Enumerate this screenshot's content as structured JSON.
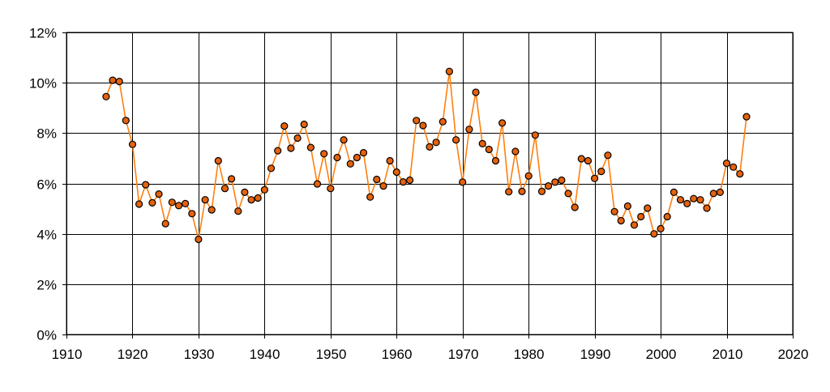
{
  "chart_data": {
    "type": "line",
    "title": "",
    "xlabel": "",
    "ylabel": "",
    "xlim": [
      1910,
      2020
    ],
    "ylim": [
      0,
      0.12
    ],
    "x_ticks": [
      1910,
      1920,
      1930,
      1940,
      1950,
      1960,
      1970,
      1980,
      1990,
      2000,
      2010,
      2020
    ],
    "x_tick_labels": [
      "1910",
      "1920",
      "1930",
      "1940",
      "1950",
      "1960",
      "1970",
      "1980",
      "1990",
      "2000",
      "2010",
      "2020"
    ],
    "y_ticks": [
      0,
      0.02,
      0.04,
      0.06,
      0.08,
      0.1,
      0.12
    ],
    "y_tick_labels": [
      "0%",
      "2%",
      "4%",
      "6%",
      "8%",
      "10%",
      "12%"
    ],
    "grid": true,
    "legend": "none",
    "colors": {
      "line": "#ff7f0e",
      "marker_fill": "#e5620e",
      "marker_edge": "#000000"
    },
    "series": [
      {
        "x": [
          1916,
          1917,
          1918,
          1919,
          1920,
          1921,
          1922,
          1923,
          1924,
          1925,
          1926,
          1927,
          1928,
          1929,
          1930,
          1931,
          1932,
          1933,
          1934,
          1935,
          1936,
          1937,
          1938,
          1939,
          1940,
          1941,
          1942,
          1943,
          1944,
          1945,
          1946,
          1947,
          1948,
          1949,
          1950,
          1951,
          1952,
          1953,
          1954,
          1955,
          1956,
          1957,
          1958,
          1959,
          1960,
          1961,
          1962,
          1963,
          1964,
          1965,
          1966,
          1967,
          1968,
          1969,
          1970,
          1971,
          1972,
          1973,
          1974,
          1975,
          1976,
          1977,
          1978,
          1979,
          1980,
          1981,
          1982,
          1983,
          1984,
          1985,
          1986,
          1987,
          1988,
          1989,
          1990,
          1991,
          1992,
          1993,
          1994,
          1995,
          1996,
          1997,
          1998,
          1999,
          2000,
          2001,
          2002,
          2003,
          2004,
          2005,
          2006,
          2007,
          2008,
          2009,
          2010,
          2011,
          2012,
          2013
        ],
        "y": [
          0.0945,
          0.101,
          0.1005,
          0.085,
          0.0755,
          0.0518,
          0.0595,
          0.0523,
          0.0558,
          0.044,
          0.0525,
          0.0512,
          0.052,
          0.048,
          0.0378,
          0.0535,
          0.0495,
          0.069,
          0.058,
          0.0618,
          0.049,
          0.0565,
          0.0535,
          0.0542,
          0.0575,
          0.066,
          0.073,
          0.0828,
          0.074,
          0.078,
          0.0835,
          0.0743,
          0.0598,
          0.0718,
          0.058,
          0.0703,
          0.0773,
          0.0678,
          0.0703,
          0.0722,
          0.0546,
          0.0616,
          0.059,
          0.069,
          0.0645,
          0.0606,
          0.0613,
          0.085,
          0.083,
          0.0745,
          0.0763,
          0.0845,
          0.1045,
          0.0773,
          0.0605,
          0.0815,
          0.0962,
          0.0758,
          0.0735,
          0.069,
          0.084,
          0.0567,
          0.0727,
          0.0568,
          0.063,
          0.0792,
          0.0568,
          0.059,
          0.0605,
          0.0613,
          0.056,
          0.0505,
          0.0698,
          0.069,
          0.062,
          0.0648,
          0.0712,
          0.0488,
          0.0452,
          0.051,
          0.0435,
          0.0468,
          0.0502,
          0.04,
          0.042,
          0.0468,
          0.0565,
          0.0535,
          0.052,
          0.054,
          0.0535,
          0.0502,
          0.056,
          0.0565,
          0.068,
          0.0665,
          0.0638,
          0.0865
        ]
      }
    ]
  }
}
